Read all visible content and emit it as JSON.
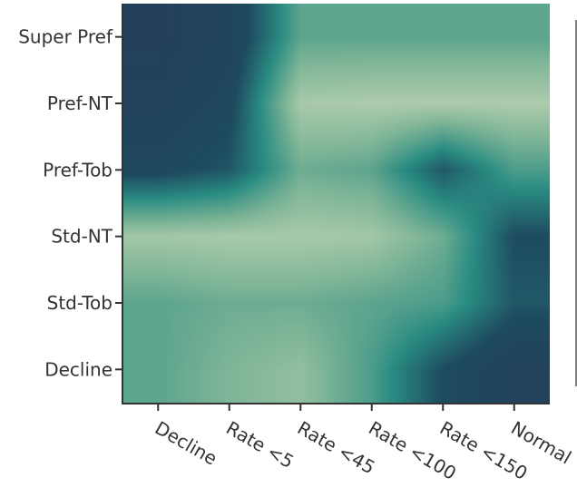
{
  "chart_data": {
    "type": "heatmap",
    "title": "",
    "xlabel": "",
    "ylabel": "",
    "x": [
      "Decline",
      "Rate <5",
      "Rate <45",
      "Rate <100",
      "Rate <150",
      "Normal"
    ],
    "y": [
      "Super Pref",
      "Pref-NT",
      "Pref-Tob",
      "Std-NT",
      "Std-Tob",
      "Decline"
    ],
    "z": [
      [
        1.0,
        0.9,
        0.35,
        0.35,
        0.35,
        0.35
      ],
      [
        0.95,
        0.8,
        0.1,
        0.08,
        0.08,
        0.08
      ],
      [
        0.8,
        0.7,
        0.3,
        0.35,
        0.7,
        0.4
      ],
      [
        0.12,
        0.1,
        0.1,
        0.12,
        0.3,
        0.75
      ],
      [
        0.35,
        0.3,
        0.3,
        0.35,
        0.4,
        0.7
      ],
      [
        0.35,
        0.25,
        0.18,
        0.4,
        0.75,
        0.95
      ]
    ],
    "zrange": [
      0,
      1
    ],
    "colorscale": [
      "#c4d6b8",
      "#7fb597",
      "#2a8c82",
      "#1e4b60",
      "#233f5c"
    ],
    "smoothing": "best",
    "colorbar": "right, clipped"
  }
}
